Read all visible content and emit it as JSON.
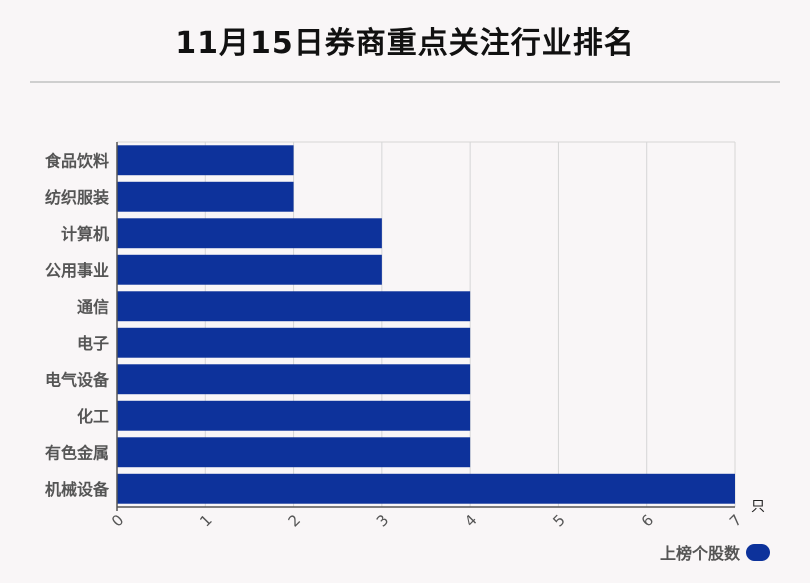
{
  "title": "11月15日券商重点关注行业排名",
  "colors": {
    "bar": "#0d329b",
    "grid": "#d6d6d6",
    "axis": "#555555",
    "label": "#555555"
  },
  "chart_data": {
    "type": "bar",
    "orientation": "horizontal",
    "categories": [
      "食品饮料",
      "纺织服装",
      "计算机",
      "公用事业",
      "通信",
      "电子",
      "电气设备",
      "化工",
      "有色金属",
      "机械设备"
    ],
    "series": [
      {
        "name": "上榜个股数",
        "values": [
          2,
          2,
          3,
          3,
          4,
          4,
          4,
          4,
          4,
          7
        ]
      }
    ],
    "xlim": [
      0,
      7
    ],
    "xticks": [
      "0",
      "1",
      "2",
      "3",
      "4",
      "5",
      "6",
      "7"
    ],
    "xunit": "只",
    "grid": true,
    "legend": "bottom-right"
  }
}
